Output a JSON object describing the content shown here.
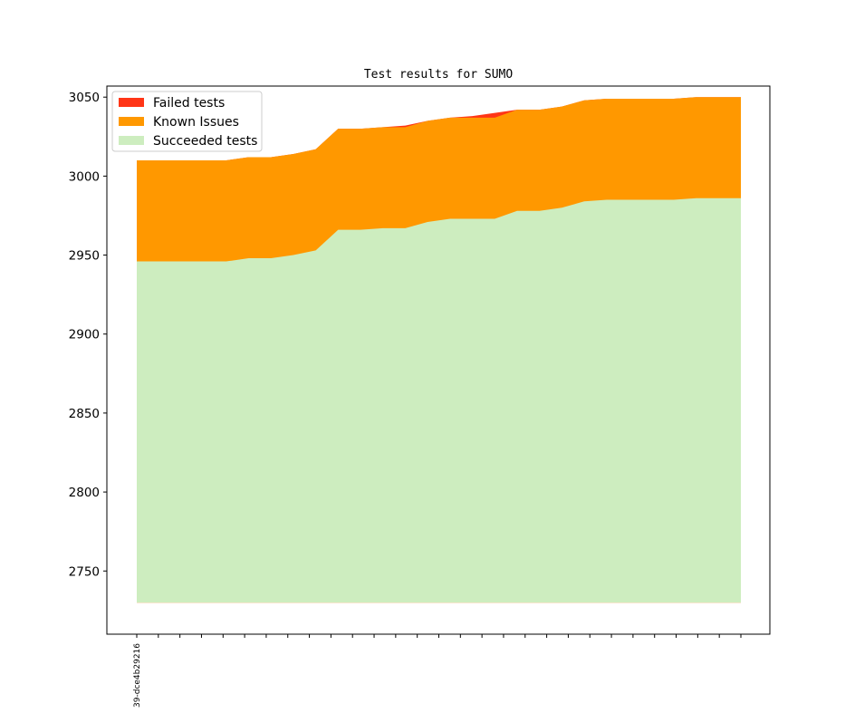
{
  "chart_data": {
    "type": "area",
    "stacked": true,
    "title": "Test results for SUMO",
    "xlabel": "",
    "ylabel": "",
    "ylim": [
      2710,
      3057
    ],
    "yticks": [
      2750,
      2800,
      2850,
      2900,
      2950,
      3000,
      3050
    ],
    "baseline": 2730,
    "x_tick_labels": [
      "39-dce4b29216"
    ],
    "x_tick_count": 29,
    "legend_position": "upper left",
    "grid": false,
    "series": [
      {
        "name": "Failed tests",
        "color": "#ff3516",
        "totals": [
          3010,
          3010,
          3010,
          3010,
          3010,
          3012,
          3012,
          3014,
          3017,
          3030,
          3030,
          3031,
          3032,
          3035,
          3037,
          3038,
          3040,
          3042,
          3042,
          3044,
          3048,
          3049,
          3049,
          3049,
          3049,
          3050,
          3050,
          3050
        ]
      },
      {
        "name": "Known Issues",
        "color": "#ff9800",
        "totals": [
          3010,
          3010,
          3010,
          3010,
          3010,
          3012,
          3012,
          3014,
          3017,
          3030,
          3030,
          3031,
          3031,
          3035,
          3037,
          3037,
          3037,
          3042,
          3042,
          3044,
          3048,
          3049,
          3049,
          3049,
          3049,
          3050,
          3050,
          3050
        ]
      },
      {
        "name": "Succeeded tests",
        "color": "#cdedbf",
        "totals": [
          2946,
          2946,
          2946,
          2946,
          2946,
          2948,
          2948,
          2950,
          2953,
          2966,
          2966,
          2967,
          2967,
          2971,
          2973,
          2973,
          2973,
          2978,
          2978,
          2980,
          2984,
          2985,
          2985,
          2985,
          2985,
          2986,
          2986,
          2986
        ]
      }
    ]
  }
}
